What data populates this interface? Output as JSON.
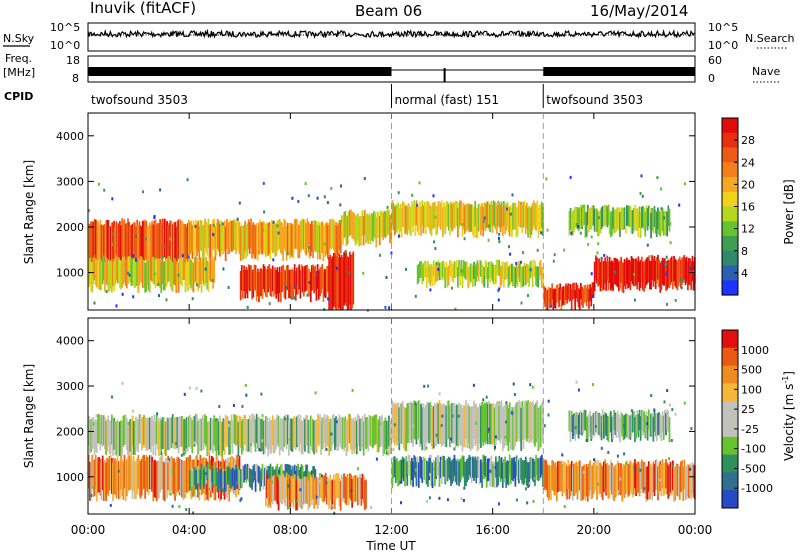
{
  "header": {
    "station": "Inuvik (fitACF)",
    "beam": "Beam 06",
    "date": "16/May/2014"
  },
  "noise_panel": {
    "left_label": "N.Sky",
    "right_label": "N.Search",
    "left_ticks": [
      "10^5",
      "10^0"
    ],
    "right_ticks": [
      "10^5",
      "10^0"
    ]
  },
  "freq_panel": {
    "left_label_1": "Freq.",
    "left_label_2": "[MHz]",
    "right_label": "Nave",
    "left_ticks": [
      "18",
      "8"
    ],
    "right_ticks": [
      "60",
      "0"
    ]
  },
  "cpid": {
    "label": "CPID",
    "segments": [
      {
        "label": "twofsound 3503",
        "start_hour": 0,
        "end_hour": 12
      },
      {
        "label": "normal (fast) 151",
        "start_hour": 12,
        "end_hour": 18
      },
      {
        "label": "twofsound 3503",
        "start_hour": 18,
        "end_hour": 24
      }
    ]
  },
  "x_axis": {
    "title": "Time UT",
    "ticks": [
      "00:00",
      "04:00",
      "08:00",
      "12:00",
      "16:00",
      "20:00",
      "00:00"
    ],
    "dashed_lines_hours": [
      12,
      18
    ]
  },
  "power_panel": {
    "ylabel": "Slant Range [km]",
    "yticks": [
      "1000",
      "2000",
      "3000",
      "4000"
    ],
    "colorbar": {
      "label": "Power [dB]",
      "ticks": [
        "4",
        "8",
        "12",
        "16",
        "20",
        "24",
        "28"
      ],
      "colors": [
        "#1f33ff",
        "#2d5fb0",
        "#2e8a6a",
        "#3f9d52",
        "#66c32e",
        "#b6d71f",
        "#f0d21d",
        "#f5a623",
        "#f27f1a",
        "#ee5a14",
        "#ea2e10",
        "#e00b0b"
      ]
    }
  },
  "velocity_panel": {
    "ylabel": "Slant Range [km]",
    "yticks": [
      "1000",
      "2000",
      "3000",
      "4000"
    ],
    "colorbar": {
      "label": "Velocity [m s",
      "label_sup": "-1",
      "label_end": "]",
      "ticks": [
        "1000",
        "500",
        "100",
        "25",
        "-25",
        "-100",
        "-500",
        "-1000"
      ],
      "colors": [
        "#2649c4",
        "#2f6f8f",
        "#2f8f5f",
        "#66c32e",
        "#c2c2bc",
        "#c2c2bc",
        "#f5b63a",
        "#ef8c1f",
        "#ea5a14",
        "#e01010"
      ]
    }
  },
  "chart_data": {
    "type": "heatmap",
    "x_range_hours": [
      0,
      24
    ],
    "y_range_km": [
      180,
      4500
    ],
    "power_bands": [
      {
        "t0": 0.0,
        "t1": 4.0,
        "r0": 1200,
        "r1": 2100,
        "level": 9
      },
      {
        "t0": 0.0,
        "t1": 5.0,
        "r0": 700,
        "r1": 1300,
        "level": 6
      },
      {
        "t0": 4.0,
        "t1": 10.0,
        "r0": 1400,
        "r1": 2100,
        "level": 7
      },
      {
        "t0": 6.0,
        "t1": 9.5,
        "r0": 500,
        "r1": 1100,
        "level": 10
      },
      {
        "t0": 9.5,
        "t1": 10.5,
        "r0": 200,
        "r1": 1400,
        "level": 11
      },
      {
        "t0": 10.0,
        "t1": 12.0,
        "r0": 1700,
        "r1": 2300,
        "level": 6
      },
      {
        "t0": 12.0,
        "t1": 18.0,
        "r0": 1900,
        "r1": 2500,
        "level": 6
      },
      {
        "t0": 13.0,
        "t1": 18.0,
        "r0": 800,
        "r1": 1200,
        "level": 5
      },
      {
        "t0": 18.0,
        "t1": 20.0,
        "r0": 300,
        "r1": 700,
        "level": 10
      },
      {
        "t0": 20.0,
        "t1": 24.0,
        "r0": 700,
        "r1": 1300,
        "level": 11
      },
      {
        "t0": 19.0,
        "t1": 23.0,
        "r0": 1900,
        "r1": 2400,
        "level": 4
      }
    ],
    "velocity_bands": [
      {
        "t0": 0.0,
        "t1": 12.0,
        "r0": 1600,
        "r1": 2300,
        "level": 4
      },
      {
        "t0": 0.0,
        "t1": 6.0,
        "r0": 600,
        "r1": 1400,
        "level": 7
      },
      {
        "t0": 4.0,
        "t1": 9.0,
        "r0": 800,
        "r1": 1200,
        "level": 2
      },
      {
        "t0": 7.0,
        "t1": 11.0,
        "r0": 400,
        "r1": 1000,
        "level": 7
      },
      {
        "t0": 12.0,
        "t1": 18.0,
        "r0": 1700,
        "r1": 2600,
        "level": 4
      },
      {
        "t0": 12.0,
        "t1": 18.0,
        "r0": 900,
        "r1": 1400,
        "level": 2
      },
      {
        "t0": 18.0,
        "t1": 24.0,
        "r0": 600,
        "r1": 1300,
        "level": 7
      },
      {
        "t0": 19.0,
        "t1": 23.0,
        "r0": 1900,
        "r1": 2400,
        "level": 3
      }
    ]
  }
}
